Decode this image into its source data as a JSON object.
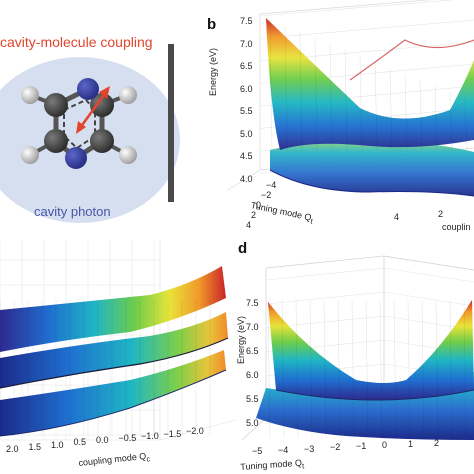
{
  "panel_a": {
    "coupling_label": "cavity-molecule coupling",
    "photon_label": "cavity photon"
  },
  "panel_b": {
    "letter": "b",
    "ylabel": "Energy (eV)",
    "yticks": [
      "7.5",
      "7.0",
      "6.5",
      "6.0",
      "5.5",
      "5.0",
      "4.5",
      "4.0"
    ],
    "tuning_label": "Tuning mode Q",
    "tuning_sub": "t",
    "tuning_ticks": [
      "−4",
      "−2",
      "0",
      "2",
      "4"
    ],
    "coupling_label": "couplin",
    "coupling_ticks": [
      "4",
      "2"
    ]
  },
  "panel_c": {
    "coupling_label": "coupling mode Q",
    "coupling_sub": "c",
    "ticks": [
      "2.0",
      "1.5",
      "1.0",
      "0.5",
      "0.0",
      "−0.5",
      "−1.0",
      "−1.5",
      "−2.0"
    ]
  },
  "panel_d": {
    "letter": "d",
    "ylabel": "Energy (eV)",
    "yticks": [
      "7.5",
      "7.0",
      "6.5",
      "6.0",
      "5.5",
      "5.0"
    ],
    "tuning_label": "Tuning mode Q",
    "tuning_sub": "t",
    "tuning_ticks": [
      "−5",
      "−4",
      "−3",
      "−2",
      "−1",
      "0",
      "1",
      "2"
    ]
  },
  "colors": {
    "coupling_red": "#e2452c",
    "photon_blue": "#4a55a8",
    "ellipse_fill": "#d6dff0",
    "mirror": "#4a4a4a",
    "carbon": "#3a3a3a",
    "nitrogen": "#2f3a9e",
    "hydrogen": "#d0d0d0"
  }
}
